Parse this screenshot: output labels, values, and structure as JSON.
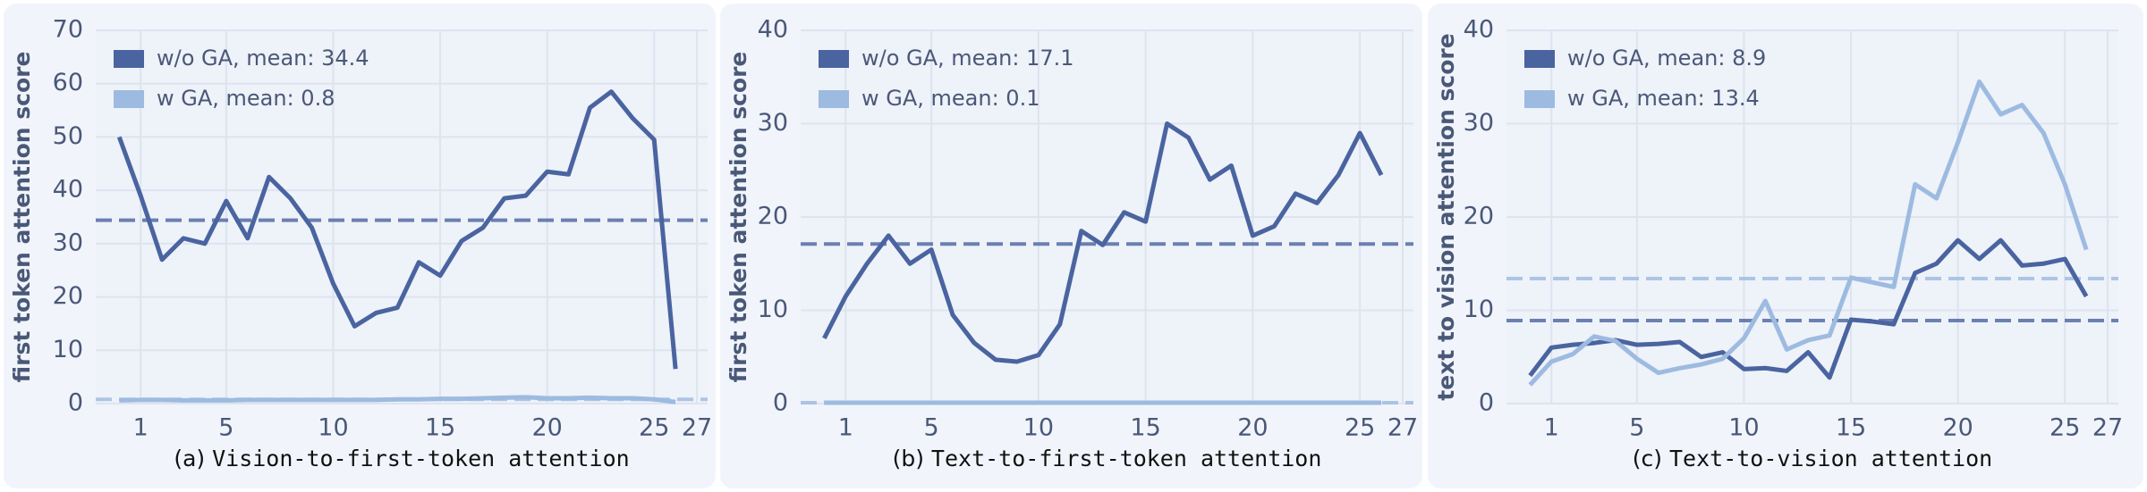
{
  "chart_data": [
    {
      "type": "line",
      "caption_label": "(a)",
      "caption": "Vision-to-first-token attention",
      "y_label": "first token attention score",
      "x": [
        0,
        1,
        2,
        3,
        4,
        5,
        6,
        7,
        8,
        9,
        10,
        11,
        12,
        13,
        14,
        15,
        16,
        17,
        18,
        19,
        20,
        21,
        22,
        23,
        24,
        25,
        26
      ],
      "xlim": [
        -1.1,
        27.5
      ],
      "xticks": [
        1,
        5,
        10,
        15,
        20,
        25,
        27
      ],
      "ylim": [
        0,
        70
      ],
      "yticks": [
        0,
        10,
        20,
        30,
        40,
        50,
        60,
        70
      ],
      "grid": true,
      "legend": "upper left",
      "series": [
        {
          "name": "w/o GA, mean: 34.4",
          "mean": 34.4,
          "color": "#4a64a0",
          "values": [
            50,
            39,
            27,
            31,
            30,
            38,
            31,
            42.5,
            38.5,
            33,
            22.5,
            14.5,
            17,
            18,
            26.5,
            24,
            30.5,
            33,
            38.5,
            39,
            43.5,
            43,
            55.5,
            58.5,
            53.5,
            49.5,
            6.5
          ]
        },
        {
          "name": "w GA, mean: 0.8",
          "mean": 0.8,
          "color": "#9dbbe0",
          "values": [
            0.6,
            0.7,
            0.7,
            0.6,
            0.6,
            0.6,
            0.7,
            0.7,
            0.7,
            0.7,
            0.7,
            0.7,
            0.7,
            0.8,
            0.8,
            0.9,
            0.9,
            1.0,
            1.1,
            1.2,
            1.0,
            1.0,
            1.1,
            1.0,
            1.0,
            0.8,
            0.3
          ]
        }
      ]
    },
    {
      "type": "line",
      "caption_label": "(b)",
      "caption": "Text-to-first-token attention",
      "y_label": "first token attention score",
      "x": [
        0,
        1,
        2,
        3,
        4,
        5,
        6,
        7,
        8,
        9,
        10,
        11,
        12,
        13,
        14,
        15,
        16,
        17,
        18,
        19,
        20,
        21,
        22,
        23,
        24,
        25,
        26
      ],
      "xlim": [
        -1.1,
        27.5
      ],
      "xticks": [
        1,
        5,
        10,
        15,
        20,
        25,
        27
      ],
      "ylim": [
        0,
        40
      ],
      "yticks": [
        0,
        10,
        20,
        30,
        40
      ],
      "grid": true,
      "legend": "upper left",
      "series": [
        {
          "name": "w/o GA, mean: 17.1",
          "mean": 17.1,
          "color": "#4a64a0",
          "values": [
            7,
            11.5,
            15,
            18,
            15,
            16.5,
            9.5,
            6.5,
            4.7,
            4.5,
            5.2,
            8.5,
            18.5,
            17,
            20.5,
            19.5,
            30,
            28.5,
            24,
            25.5,
            18,
            19,
            22.5,
            21.5,
            24.5,
            29,
            24.5
          ]
        },
        {
          "name": "w GA, mean: 0.1",
          "mean": 0.1,
          "color": "#9dbbe0",
          "values": [
            0.1,
            0.1,
            0.1,
            0.1,
            0.1,
            0.1,
            0.1,
            0.1,
            0.1,
            0.1,
            0.1,
            0.1,
            0.1,
            0.1,
            0.1,
            0.1,
            0.1,
            0.1,
            0.1,
            0.1,
            0.1,
            0.1,
            0.1,
            0.1,
            0.1,
            0.1,
            0.1
          ]
        }
      ]
    },
    {
      "type": "line",
      "caption_label": "(c)",
      "caption": "Text-to-vision attention",
      "y_label": "text to vision attention score",
      "x": [
        0,
        1,
        2,
        3,
        4,
        5,
        6,
        7,
        8,
        9,
        10,
        11,
        12,
        13,
        14,
        15,
        16,
        17,
        18,
        19,
        20,
        21,
        22,
        23,
        24,
        25,
        26
      ],
      "xlim": [
        -1.1,
        27.5
      ],
      "xticks": [
        1,
        5,
        10,
        15,
        20,
        25,
        27
      ],
      "ylim": [
        0,
        40
      ],
      "yticks": [
        0,
        10,
        20,
        30,
        40
      ],
      "grid": true,
      "legend": "upper left",
      "series": [
        {
          "name": "w/o GA, mean: 8.9",
          "mean": 8.9,
          "color": "#4a64a0",
          "values": [
            3,
            6,
            6.3,
            6.5,
            6.8,
            6.3,
            6.4,
            6.6,
            5,
            5.5,
            3.7,
            3.8,
            3.5,
            5.5,
            2.8,
            9,
            8.8,
            8.5,
            14,
            15,
            17.5,
            15.5,
            17.5,
            14.8,
            15,
            15.5,
            11.5
          ]
        },
        {
          "name": "w GA, mean: 13.4",
          "mean": 13.4,
          "color": "#9dbbe0",
          "values": [
            2,
            4.5,
            5.3,
            7.2,
            6.7,
            4.8,
            3.3,
            3.8,
            4.2,
            4.8,
            7,
            11,
            5.8,
            6.8,
            7.3,
            13.5,
            13,
            12.5,
            23.5,
            22,
            28,
            34.5,
            31,
            32,
            29,
            23.5,
            16.5
          ]
        }
      ]
    }
  ]
}
